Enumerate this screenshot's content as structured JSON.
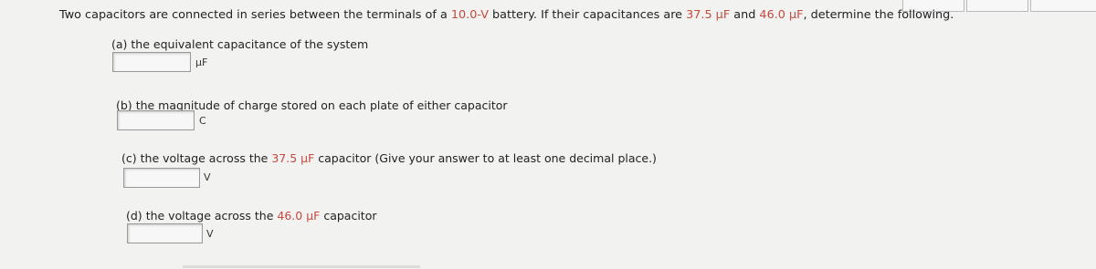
{
  "question": {
    "segments": [
      "Two capacitors are connected in series between the terminals of a ",
      "10.0-V",
      " battery. If their capacitances are ",
      "37.5 μF",
      " and ",
      "46.0 μF",
      ", determine the following."
    ]
  },
  "parts": [
    {
      "label": "(a)",
      "text": "the equivalent capacitance of the system",
      "unit": "μF"
    },
    {
      "label": "(b)",
      "text": "the magnitude of charge stored on each plate of either capacitor",
      "unit": "C"
    },
    {
      "label": "(c)",
      "segments": [
        "the voltage across the ",
        "37.5 μF",
        " capacitor (Give your answer to at least one decimal place.)"
      ],
      "unit": "V"
    },
    {
      "label": "(d)",
      "segments": [
        "the voltage across the ",
        "46.0 μF",
        " capacitor"
      ],
      "unit": "V"
    }
  ]
}
